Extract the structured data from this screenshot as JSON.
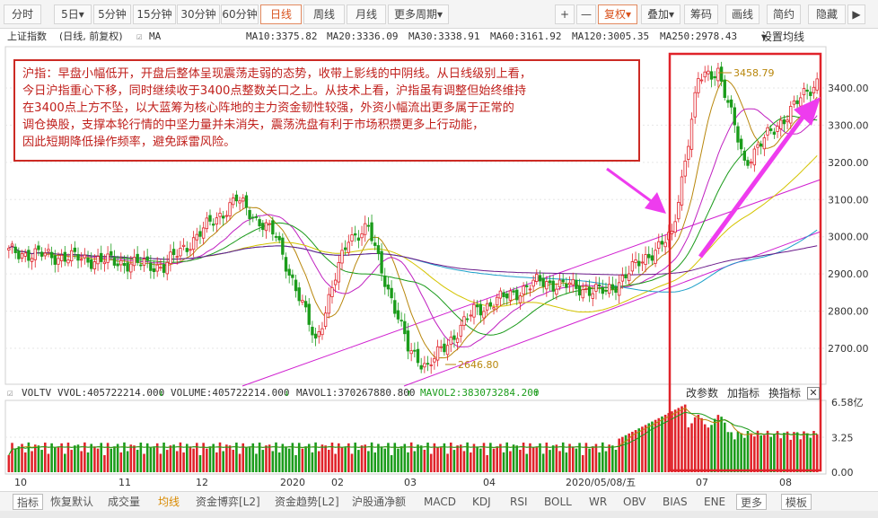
{
  "toolbar": {
    "periods": [
      "分时",
      "5日",
      "5分钟",
      "15分钟",
      "30分钟",
      "60分钟",
      "日线",
      "周线",
      "月线",
      "更多周期"
    ],
    "active_period": "日线",
    "plus": "+",
    "minus": "—",
    "fq": "复权",
    "overlay": "叠加",
    "chips": "筹码",
    "draw": "画线",
    "simple": "简约",
    "hide": "隐藏"
  },
  "title": {
    "name": "上证指数",
    "mode": "(日线, 前复权)",
    "indicator": "MA",
    "ma_values": [
      {
        "label": "MA10:3375.82",
        "color": "#b8860b"
      },
      {
        "label": "MA20:3336.09",
        "color": "#c020c0"
      },
      {
        "label": "MA30:3338.91",
        "color": "#1a9a1a"
      },
      {
        "label": "MA60:3161.92",
        "color": "#d4c400"
      },
      {
        "label": "MA120:3005.35",
        "color": "#1a9ec8"
      },
      {
        "label": "MA250:2978.43",
        "color": "#6a1a8a"
      }
    ],
    "settings": "设置均线"
  },
  "note_lines": [
    "沪指：早盘小幅低开，开盘后整体呈现震荡走弱的态势，收带上影线的中阴线。从日线级别上看，",
    "今日沪指重心下移，同时继续收于3400点整数关口之上。从技术上看，沪指虽有调整但始终维持",
    "在3400点上方不坠，以大蓝筹为核心阵地的主力资金韧性较强，外资小幅流出更多属于正常的",
    "调仓换股，支撑本轮行情的中坚力量并未消失，震荡洗盘有利于市场积攒更多上行动能，",
    "因此短期降低操作频率，避免踩雷风险。"
  ],
  "price_axis": {
    "labels": [
      "3400.00",
      "3300.00",
      "3200.00",
      "3100.00",
      "3000.00",
      "2900.00",
      "2800.00",
      "2700.00"
    ],
    "values": [
      3400,
      3300,
      3200,
      3100,
      3000,
      2900,
      2800,
      2700
    ]
  },
  "price_marks": {
    "high": "3458.79",
    "low": "2646.80"
  },
  "volume": {
    "name": "VOLTV",
    "vvol": "VVOL:405722214.000",
    "volume": "VOLUME:405722214.000",
    "mavol1": "MAVOL1:370267880.800",
    "mavol2": "MAVOL2:383073284.200",
    "tools": [
      "改参数",
      "加指标",
      "换指标"
    ],
    "axis_labels": [
      "6.58亿",
      "3.25",
      "0.00"
    ],
    "axis_values": [
      6.58,
      3.25,
      0
    ]
  },
  "x_axis": {
    "labels": [
      "10",
      "11",
      "12",
      "2020",
      "02",
      "03",
      "04",
      "2020/05/08/五",
      "07",
      "08"
    ]
  },
  "bottom_tabs": [
    "指标",
    "恢复默认",
    "成交量",
    "均线",
    "资金博弈[L2]",
    "资金趋势[L2]",
    "沪股通净额",
    "MACD",
    "KDJ",
    "RSI",
    "BOLL",
    "WR",
    "OBV",
    "BIAS",
    "ENE",
    "更多",
    "模板"
  ],
  "bottom_active": "均线",
  "colors": {
    "up": "#e0232a",
    "down": "#1b9c1b",
    "highlight_box": "#e0232a",
    "arrow": "#ee3cee",
    "channel": "#d020d0"
  },
  "chart_data": {
    "type": "candlestick",
    "ylim": [
      2600,
      3500
    ],
    "segments": [
      {
        "from": 2960,
        "to": 2920,
        "n": 48
      },
      {
        "from": 2920,
        "to": 3100,
        "n": 22
      },
      {
        "from": 3100,
        "to": 3000,
        "n": 12
      },
      {
        "from": 3000,
        "to": 2720,
        "n": 12
      },
      {
        "from": 2720,
        "to": 3000,
        "n": 10
      },
      {
        "from": 3000,
        "to": 3020,
        "n": 6
      },
      {
        "from": 3020,
        "to": 2700,
        "n": 12
      },
      {
        "from": 2700,
        "to": 2650,
        "n": 6
      },
      {
        "from": 2650,
        "to": 2800,
        "n": 14
      },
      {
        "from": 2800,
        "to": 2880,
        "n": 20
      },
      {
        "from": 2880,
        "to": 2850,
        "n": 20
      },
      {
        "from": 2850,
        "to": 2960,
        "n": 14
      },
      {
        "from": 2960,
        "to": 3000,
        "n": 6
      },
      {
        "from": 3000,
        "to": 3420,
        "n": 8
      },
      {
        "from": 3420,
        "to": 3450,
        "n": 6
      },
      {
        "from": 3450,
        "to": 3200,
        "n": 8
      },
      {
        "from": 3200,
        "to": 3340,
        "n": 14
      },
      {
        "from": 3340,
        "to": 3420,
        "n": 8
      }
    ],
    "volume_range": [
      0,
      6.58
    ]
  }
}
